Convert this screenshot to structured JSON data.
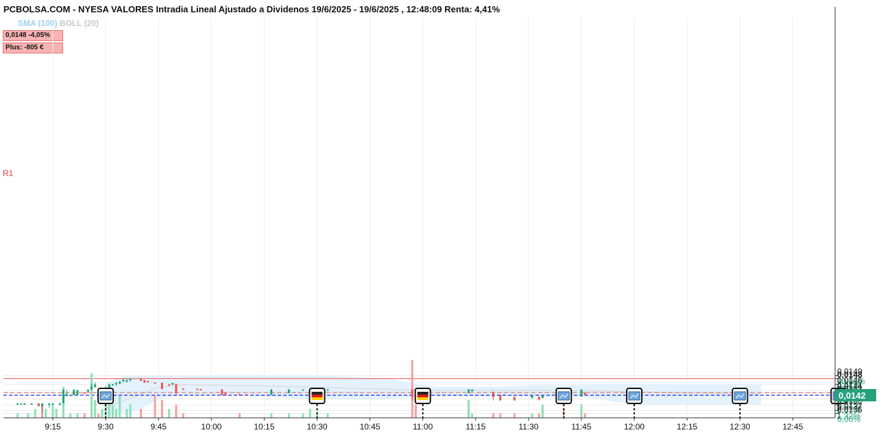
{
  "header": {
    "title": "PCBOLSA.COM - NYESA VALORES Intradia Lineal Ajustado a Dividenos 19/6/2025 - 19/6/2025 , 12:48:09 Renta: 4,41%",
    "indicator_sma": "SMA (100)",
    "indicator_boll": "BOLL (20)"
  },
  "info": {
    "price_change": "0,0148  -4,05%",
    "plus": "Plus: -805 €"
  },
  "r1_label": "R1",
  "colors": {
    "up": "#26a17b",
    "down": "#ef5350",
    "band": "#e3f2fd",
    "sma": "#dcdcdc",
    "current_price_line": "#1a1aff",
    "r1_line": "#ef5350",
    "max_line": "#ef5350"
  },
  "chart_data": {
    "type": "candlestick",
    "ylim": [
      0.0135,
      0.0149
    ],
    "price_ticks": [
      {
        "price": "0,0149",
        "pct": "10,07%"
      },
      {
        "price": "0,0148",
        "pct": "8,82%",
        "bold": true
      },
      {
        "price": "0,0146",
        "pct": "7,57%"
      },
      {
        "price": "0,0144",
        "pct": "6,32%"
      },
      {
        "price": "0,0143",
        "pct": "5,07%"
      },
      {
        "price": "0,0141",
        "pct": "3,82%"
      },
      {
        "price": "0,0139",
        "pct": "2,57%"
      },
      {
        "price": "0,0137",
        "pct": "1,32%"
      },
      {
        "price": "0,0136",
        "pct": "0,00%"
      }
    ],
    "current_price": "0,0142",
    "current_price_value": 0.01423,
    "r1_value": 0.01432,
    "max_line_value": 0.0148,
    "x_ticks": [
      "9:15",
      "9:30",
      "9:45",
      "10:00",
      "10:15",
      "10:30",
      "10:45",
      "11:00",
      "11:15",
      "11:30",
      "11:45",
      "12:00",
      "12:15",
      "12:30",
      "12:45"
    ],
    "event_markers": [
      {
        "time": "9:30",
        "kind": "news"
      },
      {
        "time": "10:30",
        "kind": "flag-de"
      },
      {
        "time": "11:00",
        "kind": "flag-de"
      },
      {
        "time": "11:40",
        "kind": "news"
      },
      {
        "time": "12:00",
        "kind": "news"
      },
      {
        "time": "12:30",
        "kind": "news"
      },
      {
        "time": "12:58",
        "kind": "news"
      }
    ],
    "candles": [
      {
        "t": "9:05",
        "o": 0.01395,
        "h": 0.01395,
        "l": 0.01393,
        "c": 0.01395
      },
      {
        "t": "9:06",
        "o": 0.01393,
        "h": 0.01395,
        "l": 0.01393,
        "c": 0.01395
      },
      {
        "t": "9:07",
        "o": 0.01394,
        "h": 0.01395,
        "l": 0.01394,
        "c": 0.01395
      },
      {
        "t": "9:09",
        "o": 0.01394,
        "h": 0.01395,
        "l": 0.01394,
        "c": 0.01395
      },
      {
        "t": "9:11",
        "o": 0.01395,
        "h": 0.01395,
        "l": 0.01385,
        "c": 0.01385
      },
      {
        "t": "9:12",
        "o": 0.01385,
        "h": 0.01395,
        "l": 0.01362,
        "c": 0.01395
      },
      {
        "t": "9:14",
        "o": 0.01389,
        "h": 0.01395,
        "l": 0.01379,
        "c": 0.01395
      },
      {
        "t": "9:15",
        "o": 0.01391,
        "h": 0.01395,
        "l": 0.01391,
        "c": 0.01395
      },
      {
        "t": "9:17",
        "o": 0.01394,
        "h": 0.01398,
        "l": 0.01394,
        "c": 0.01394
      },
      {
        "t": "9:18",
        "o": 0.01395,
        "h": 0.01442,
        "l": 0.01395,
        "c": 0.01442
      },
      {
        "t": "9:19",
        "o": 0.0142,
        "h": 0.0144,
        "l": 0.0142,
        "c": 0.01427
      },
      {
        "t": "9:20",
        "o": 0.0142,
        "h": 0.01425,
        "l": 0.0142,
        "c": 0.01425
      },
      {
        "t": "9:21",
        "o": 0.01423,
        "h": 0.01442,
        "l": 0.01423,
        "c": 0.01442
      },
      {
        "t": "9:22",
        "o": 0.01422,
        "h": 0.01442,
        "l": 0.0142,
        "c": 0.0144
      },
      {
        "t": "9:24",
        "o": 0.01433,
        "h": 0.01433,
        "l": 0.01428,
        "c": 0.01428
      },
      {
        "t": "9:25",
        "o": 0.01435,
        "h": 0.01442,
        "l": 0.01435,
        "c": 0.01442
      },
      {
        "t": "9:26",
        "o": 0.01442,
        "h": 0.01464,
        "l": 0.01442,
        "c": 0.01454
      },
      {
        "t": "9:27",
        "o": 0.0145,
        "h": 0.01468,
        "l": 0.0145,
        "c": 0.0146
      },
      {
        "t": "9:28",
        "o": 0.01445,
        "h": 0.01445,
        "l": 0.01442,
        "c": 0.01443
      },
      {
        "t": "9:29",
        "o": 0.01443,
        "h": 0.01447,
        "l": 0.01443,
        "c": 0.01444
      },
      {
        "t": "9:30",
        "o": 0.01443,
        "h": 0.01455,
        "l": 0.01443,
        "c": 0.01448
      },
      {
        "t": "9:31",
        "o": 0.01442,
        "h": 0.01463,
        "l": 0.01442,
        "c": 0.0146
      },
      {
        "t": "9:32",
        "o": 0.01457,
        "h": 0.01461,
        "l": 0.01457,
        "c": 0.01461
      },
      {
        "t": "9:33",
        "o": 0.0146,
        "h": 0.01468,
        "l": 0.01455,
        "c": 0.01465
      },
      {
        "t": "9:34",
        "o": 0.01462,
        "h": 0.01471,
        "l": 0.01462,
        "c": 0.0147
      },
      {
        "t": "9:35",
        "o": 0.0147,
        "h": 0.0148,
        "l": 0.0147,
        "c": 0.01476
      },
      {
        "t": "9:36",
        "o": 0.01473,
        "h": 0.0148,
        "l": 0.01466,
        "c": 0.01474
      },
      {
        "t": "9:37",
        "o": 0.01475,
        "h": 0.0148,
        "l": 0.0147,
        "c": 0.0148
      },
      {
        "t": "9:40",
        "o": 0.0148,
        "h": 0.0148,
        "l": 0.01472,
        "c": 0.01472
      },
      {
        "t": "9:41",
        "o": 0.01475,
        "h": 0.01475,
        "l": 0.01466,
        "c": 0.01466
      },
      {
        "t": "9:42",
        "o": 0.01472,
        "h": 0.01472,
        "l": 0.01466,
        "c": 0.01467
      },
      {
        "t": "9:44",
        "o": 0.01467,
        "h": 0.01467,
        "l": 0.01465,
        "c": 0.01465
      },
      {
        "t": "9:46",
        "o": 0.01466,
        "h": 0.01466,
        "l": 0.01444,
        "c": 0.01444
      },
      {
        "t": "9:48",
        "o": 0.0146,
        "h": 0.01462,
        "l": 0.01458,
        "c": 0.01458
      },
      {
        "t": "9:49",
        "o": 0.01459,
        "h": 0.01466,
        "l": 0.01459,
        "c": 0.01465
      },
      {
        "t": "9:50",
        "o": 0.01462,
        "h": 0.01462,
        "l": 0.01423,
        "c": 0.0143
      },
      {
        "t": "9:52",
        "o": 0.01446,
        "h": 0.01446,
        "l": 0.01443,
        "c": 0.01443
      },
      {
        "t": "9:56",
        "o": 0.01445,
        "h": 0.01445,
        "l": 0.01443,
        "c": 0.01443
      },
      {
        "t": "9:57",
        "o": 0.01444,
        "h": 0.01444,
        "l": 0.01443,
        "c": 0.01443
      },
      {
        "t": "10:03",
        "o": 0.01443,
        "h": 0.01443,
        "l": 0.01423,
        "c": 0.01423
      },
      {
        "t": "10:04",
        "o": 0.01433,
        "h": 0.01433,
        "l": 0.01423,
        "c": 0.01423
      },
      {
        "t": "10:08",
        "o": 0.01427,
        "h": 0.01427,
        "l": 0.01423,
        "c": 0.01425
      },
      {
        "t": "10:10",
        "o": 0.01426,
        "h": 0.01426,
        "l": 0.01423,
        "c": 0.01423
      },
      {
        "t": "10:17",
        "o": 0.01424,
        "h": 0.01443,
        "l": 0.01424,
        "c": 0.01443
      },
      {
        "t": "10:22",
        "o": 0.0143,
        "h": 0.01443,
        "l": 0.0143,
        "c": 0.01443
      },
      {
        "t": "10:26",
        "o": 0.0144,
        "h": 0.01443,
        "l": 0.0144,
        "c": 0.01443
      },
      {
        "t": "10:28",
        "o": 0.01442,
        "h": 0.01443,
        "l": 0.01442,
        "c": 0.01443
      },
      {
        "t": "10:30",
        "o": 0.01443,
        "h": 0.01444,
        "l": 0.01443,
        "c": 0.01443
      },
      {
        "t": "10:33",
        "o": 0.01443,
        "h": 0.01443,
        "l": 0.01443,
        "c": 0.01443
      },
      {
        "t": "10:57",
        "o": 0.01443,
        "h": 0.01443,
        "l": 0.01405,
        "c": 0.01417
      },
      {
        "t": "10:58",
        "o": 0.0143,
        "h": 0.0143,
        "l": 0.01418,
        "c": 0.01418
      },
      {
        "t": "11:13",
        "o": 0.0143,
        "h": 0.01443,
        "l": 0.0143,
        "c": 0.01443
      },
      {
        "t": "11:14",
        "o": 0.01436,
        "h": 0.01443,
        "l": 0.01436,
        "c": 0.01443
      },
      {
        "t": "11:20",
        "o": 0.01435,
        "h": 0.01435,
        "l": 0.01405,
        "c": 0.01417
      },
      {
        "t": "11:22",
        "o": 0.01425,
        "h": 0.01425,
        "l": 0.01405,
        "c": 0.01405
      },
      {
        "t": "11:26",
        "o": 0.01417,
        "h": 0.01417,
        "l": 0.01405,
        "c": 0.01405
      },
      {
        "t": "11:31",
        "o": 0.01413,
        "h": 0.01423,
        "l": 0.01413,
        "c": 0.01423
      },
      {
        "t": "11:33",
        "o": 0.01418,
        "h": 0.01418,
        "l": 0.01405,
        "c": 0.01408
      },
      {
        "t": "11:34",
        "o": 0.01413,
        "h": 0.01423,
        "l": 0.01413,
        "c": 0.01423
      },
      {
        "t": "11:45",
        "o": 0.01418,
        "h": 0.01443,
        "l": 0.01418,
        "c": 0.01443
      },
      {
        "t": "11:46",
        "o": 0.01432,
        "h": 0.01432,
        "l": 0.01423,
        "c": 0.01423
      }
    ],
    "sma_points": [
      {
        "t": "9:30",
        "v": 0.0138
      },
      {
        "t": "9:45",
        "v": 0.0145
      },
      {
        "t": "9:52",
        "v": 0.01459
      },
      {
        "t": "10:15",
        "v": 0.01455
      },
      {
        "t": "10:45",
        "v": 0.01445
      },
      {
        "t": "11:00",
        "v": 0.0144
      },
      {
        "t": "11:30",
        "v": 0.0144
      },
      {
        "t": "11:48",
        "v": 0.01438
      },
      {
        "t": "12:15",
        "v": 0.01431
      },
      {
        "t": "12:36",
        "v": 0.01428
      }
    ],
    "boll_upper": [
      {
        "t": "9:30",
        "v": 0.01465
      },
      {
        "t": "9:35",
        "v": 0.01488
      },
      {
        "t": "9:40",
        "v": 0.01492
      },
      {
        "t": "9:45",
        "v": 0.0149
      },
      {
        "t": "9:50",
        "v": 0.01488
      },
      {
        "t": "10:00",
        "v": 0.01492
      },
      {
        "t": "10:30",
        "v": 0.01492
      },
      {
        "t": "10:50",
        "v": 0.0148
      },
      {
        "t": "11:00",
        "v": 0.01458
      },
      {
        "t": "11:05",
        "v": 0.01452
      },
      {
        "t": "11:20",
        "v": 0.01452
      },
      {
        "t": "11:30",
        "v": 0.01457
      },
      {
        "t": "11:45",
        "v": 0.01458
      },
      {
        "t": "11:52",
        "v": 0.01462
      },
      {
        "t": "12:00",
        "v": 0.01462
      },
      {
        "t": "12:30",
        "v": 0.0146
      },
      {
        "t": "12:36",
        "v": 0.0146
      }
    ],
    "boll_lower": [
      {
        "t": "9:30",
        "v": 0.0135
      },
      {
        "t": "9:35",
        "v": 0.0136
      },
      {
        "t": "9:40",
        "v": 0.01375
      },
      {
        "t": "9:45",
        "v": 0.0141
      },
      {
        "t": "9:50",
        "v": 0.01418
      },
      {
        "t": "10:00",
        "v": 0.01425
      },
      {
        "t": "10:15",
        "v": 0.01418
      },
      {
        "t": "10:30",
        "v": 0.01408
      },
      {
        "t": "10:45",
        "v": 0.01408
      },
      {
        "t": "11:00",
        "v": 0.01418
      },
      {
        "t": "11:30",
        "v": 0.01418
      },
      {
        "t": "11:45",
        "v": 0.01418
      },
      {
        "t": "11:55",
        "v": 0.014
      },
      {
        "t": "12:00",
        "v": 0.01392
      },
      {
        "t": "12:15",
        "v": 0.0139
      },
      {
        "t": "12:36",
        "v": 0.0139
      }
    ],
    "volumes": [
      {
        "t": "9:05",
        "v": 1,
        "up": true
      },
      {
        "t": "9:08",
        "v": 1,
        "up": true
      },
      {
        "t": "9:10",
        "v": 2,
        "up": true
      },
      {
        "t": "9:12",
        "v": 3,
        "up": false
      },
      {
        "t": "9:13",
        "v": 2,
        "up": true
      },
      {
        "t": "9:15",
        "v": 3,
        "up": true
      },
      {
        "t": "9:16",
        "v": 2,
        "up": true
      },
      {
        "t": "9:18",
        "v": 7,
        "up": true
      },
      {
        "t": "9:20",
        "v": 1,
        "up": true
      },
      {
        "t": "9:22",
        "v": 1,
        "up": true
      },
      {
        "t": "9:24",
        "v": 1,
        "up": false
      },
      {
        "t": "9:26",
        "v": 10,
        "up": true
      },
      {
        "t": "9:27",
        "v": 4,
        "up": true
      },
      {
        "t": "9:28",
        "v": 1,
        "up": false
      },
      {
        "t": "9:29",
        "v": 2,
        "up": true
      },
      {
        "t": "9:30",
        "v": 3,
        "up": true
      },
      {
        "t": "9:31",
        "v": 5,
        "up": true
      },
      {
        "t": "9:32",
        "v": 3,
        "up": true
      },
      {
        "t": "9:33",
        "v": 2,
        "up": true
      },
      {
        "t": "9:34",
        "v": 5,
        "up": true
      },
      {
        "t": "9:36",
        "v": 2,
        "up": true
      },
      {
        "t": "9:37",
        "v": 3,
        "up": true
      },
      {
        "t": "9:40",
        "v": 2,
        "up": false
      },
      {
        "t": "9:44",
        "v": 5,
        "up": false
      },
      {
        "t": "9:46",
        "v": 4,
        "up": false
      },
      {
        "t": "9:48",
        "v": 2,
        "up": true
      },
      {
        "t": "9:50",
        "v": 3,
        "up": false
      },
      {
        "t": "9:52",
        "v": 1,
        "up": false
      },
      {
        "t": "10:08",
        "v": 1,
        "up": false
      },
      {
        "t": "10:17",
        "v": 1,
        "up": true
      },
      {
        "t": "10:22",
        "v": 1,
        "up": true
      },
      {
        "t": "10:26",
        "v": 1,
        "up": true
      },
      {
        "t": "10:28",
        "v": 2,
        "up": true
      },
      {
        "t": "10:30",
        "v": 1,
        "up": true
      },
      {
        "t": "10:33",
        "v": 1,
        "up": true
      },
      {
        "t": "10:57",
        "v": 13,
        "up": false
      },
      {
        "t": "10:58",
        "v": 3,
        "up": false
      },
      {
        "t": "11:13",
        "v": 4,
        "up": true
      },
      {
        "t": "11:14",
        "v": 1,
        "up": true
      },
      {
        "t": "11:20",
        "v": 1,
        "up": false
      },
      {
        "t": "11:22",
        "v": 1,
        "up": false
      },
      {
        "t": "11:26",
        "v": 1,
        "up": false
      },
      {
        "t": "11:31",
        "v": 1,
        "up": true
      },
      {
        "t": "11:33",
        "v": 1,
        "up": false
      },
      {
        "t": "11:34",
        "v": 3,
        "up": true
      },
      {
        "t": "11:40",
        "v": 2,
        "up": false
      },
      {
        "t": "11:45",
        "v": 3,
        "up": true
      },
      {
        "t": "11:46",
        "v": 1,
        "up": false
      }
    ]
  }
}
